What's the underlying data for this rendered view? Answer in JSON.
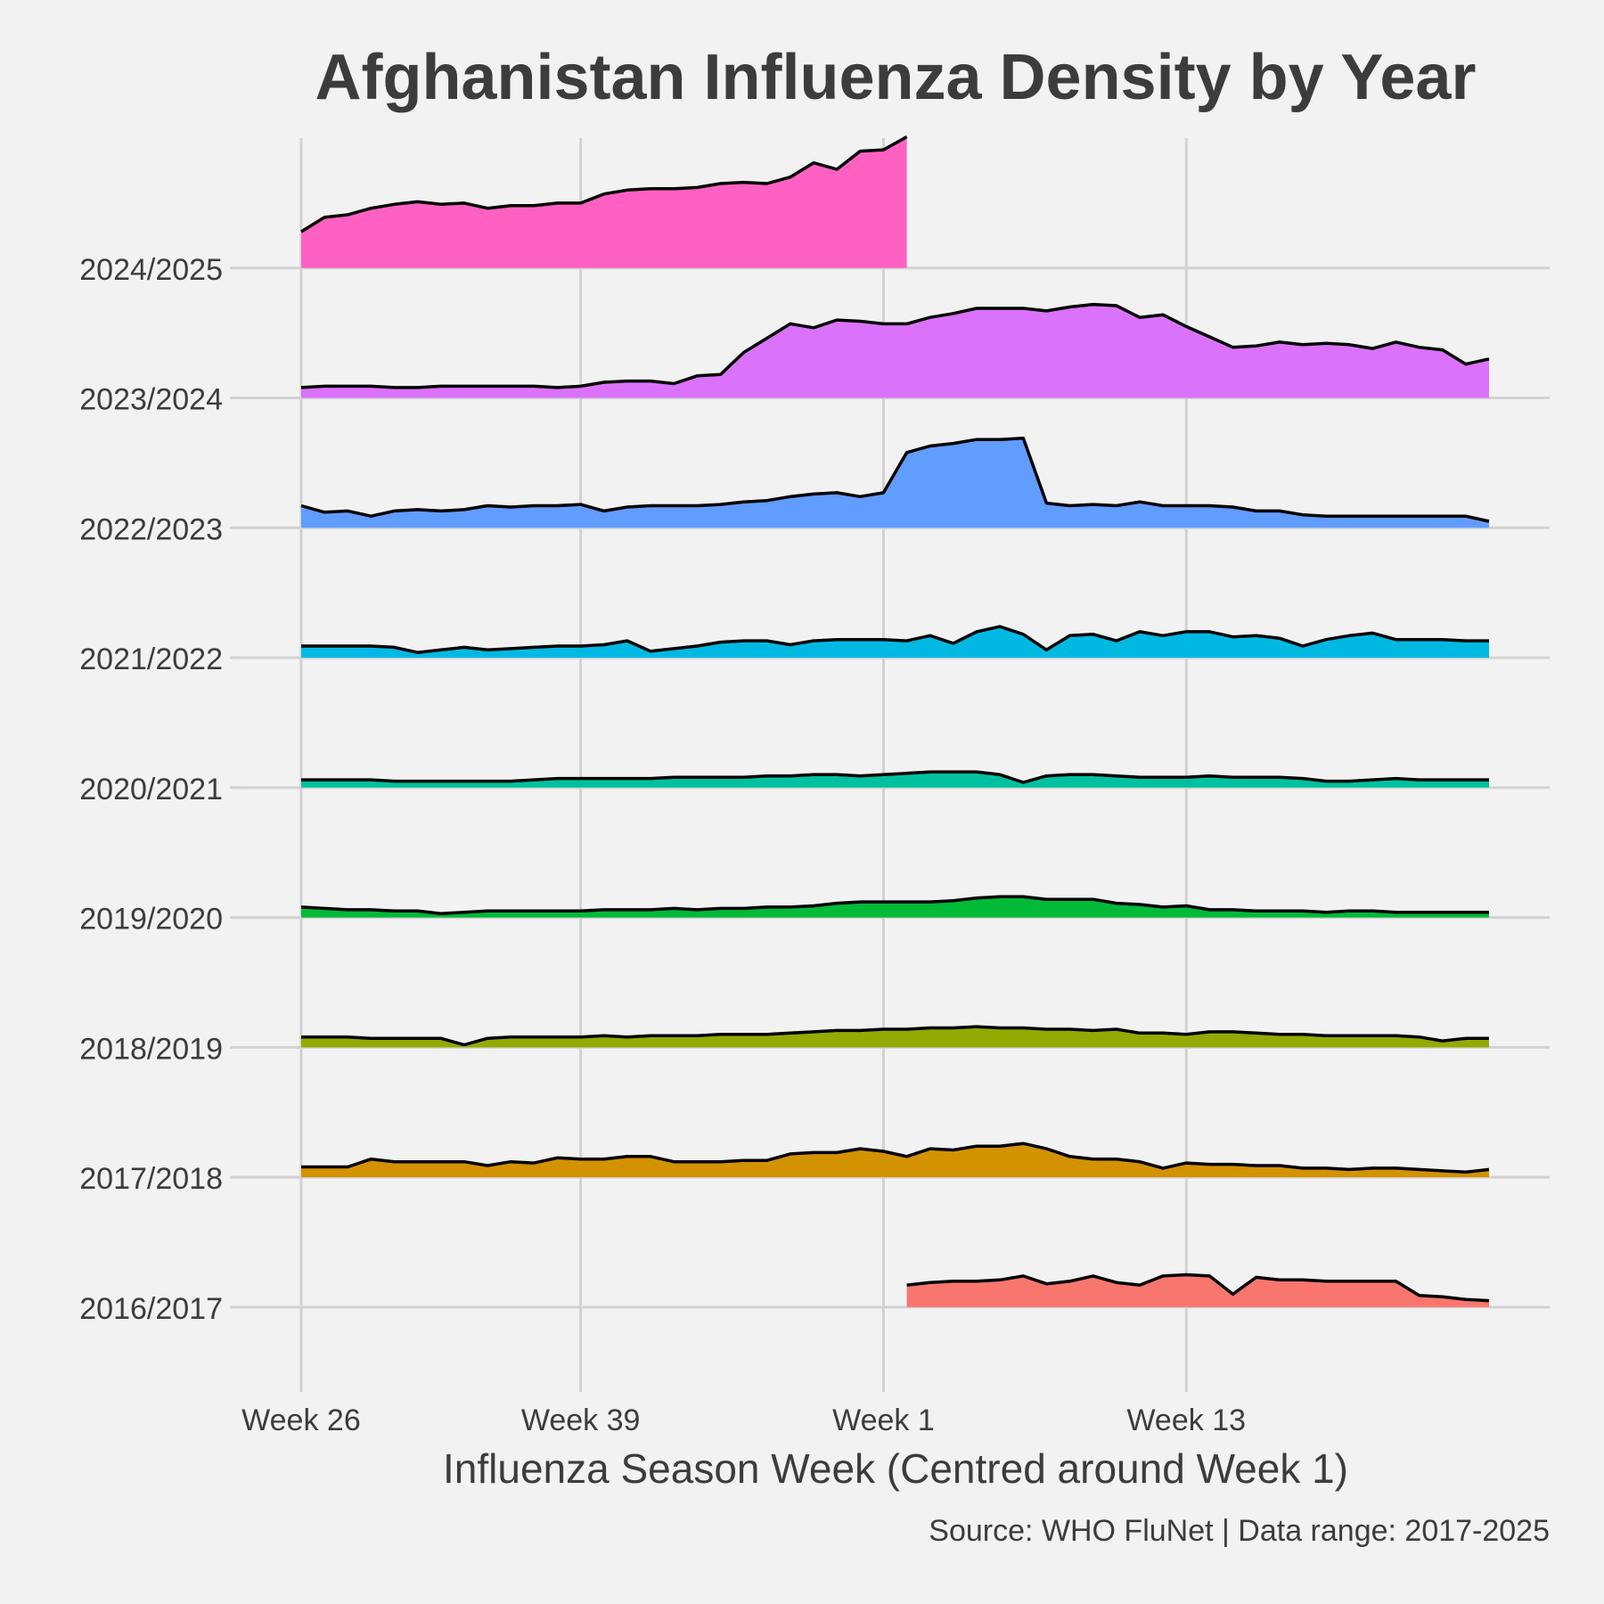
{
  "chart_data": {
    "type": "ridgeline",
    "title": "Afghanistan Influenza Density by Year",
    "x_label": "Influenza Season Week (Centred around Week 1)",
    "caption": "Source: WHO FluNet | Data range: 2017-2025",
    "x": [
      0,
      1,
      2,
      3,
      4,
      5,
      6,
      7,
      8,
      9,
      10,
      11,
      12,
      13,
      14,
      15,
      16,
      17,
      18,
      19,
      20,
      21,
      22,
      23,
      24,
      25,
      26,
      27,
      28,
      29,
      30,
      31,
      32,
      33,
      34,
      35,
      36,
      37,
      38,
      39,
      40,
      41,
      42,
      43,
      44,
      45,
      46,
      47,
      48,
      49,
      50,
      51
    ],
    "xlim": [
      -2.6,
      53.6
    ],
    "xticks": [
      {
        "value": 0,
        "label": "Week 26"
      },
      {
        "value": 12,
        "label": "Week 39"
      },
      {
        "value": 25,
        "label": "Week 1"
      },
      {
        "value": 38,
        "label": "Week 13"
      }
    ],
    "ylim": [
      -0.57,
      9.0
    ],
    "grid": true,
    "series": [
      {
        "name": "2016/2017",
        "color": "#F8766D",
        "values": [
          null,
          null,
          null,
          null,
          null,
          null,
          null,
          null,
          null,
          null,
          null,
          null,
          null,
          null,
          null,
          null,
          null,
          null,
          null,
          null,
          null,
          null,
          null,
          null,
          null,
          null,
          0.17,
          0.19,
          0.2,
          0.2,
          0.21,
          0.24,
          0.18,
          0.2,
          0.24,
          0.19,
          0.17,
          0.24,
          0.25,
          0.24,
          0.1,
          0.23,
          0.21,
          0.21,
          0.2,
          0.2,
          0.2,
          0.2,
          0.09,
          0.08,
          0.06,
          0.05
        ]
      },
      {
        "name": "2017/2018",
        "color": "#D39200",
        "values": [
          0.08,
          0.08,
          0.08,
          0.14,
          0.12,
          0.12,
          0.12,
          0.12,
          0.09,
          0.12,
          0.11,
          0.15,
          0.14,
          0.14,
          0.16,
          0.16,
          0.12,
          0.12,
          0.12,
          0.13,
          0.13,
          0.18,
          0.19,
          0.19,
          0.22,
          0.2,
          0.16,
          0.22,
          0.21,
          0.24,
          0.24,
          0.26,
          0.22,
          0.16,
          0.14,
          0.14,
          0.12,
          0.07,
          0.11,
          0.1,
          0.1,
          0.09,
          0.09,
          0.07,
          0.07,
          0.06,
          0.07,
          0.07,
          0.06,
          0.05,
          0.04,
          0.06
        ]
      },
      {
        "name": "2018/2019",
        "color": "#93AA00",
        "values": [
          0.08,
          0.08,
          0.08,
          0.07,
          0.07,
          0.07,
          0.07,
          0.02,
          0.07,
          0.08,
          0.08,
          0.08,
          0.08,
          0.09,
          0.08,
          0.09,
          0.09,
          0.09,
          0.1,
          0.1,
          0.1,
          0.11,
          0.12,
          0.13,
          0.13,
          0.14,
          0.14,
          0.15,
          0.15,
          0.16,
          0.15,
          0.15,
          0.14,
          0.14,
          0.13,
          0.14,
          0.11,
          0.11,
          0.1,
          0.12,
          0.12,
          0.11,
          0.1,
          0.1,
          0.09,
          0.09,
          0.09,
          0.09,
          0.08,
          0.05,
          0.07,
          0.07
        ]
      },
      {
        "name": "2019/2020",
        "color": "#00BA38",
        "values": [
          0.08,
          0.07,
          0.06,
          0.06,
          0.05,
          0.05,
          0.03,
          0.04,
          0.05,
          0.05,
          0.05,
          0.05,
          0.05,
          0.06,
          0.06,
          0.06,
          0.07,
          0.06,
          0.07,
          0.07,
          0.08,
          0.08,
          0.09,
          0.11,
          0.12,
          0.12,
          0.12,
          0.12,
          0.13,
          0.15,
          0.16,
          0.16,
          0.14,
          0.14,
          0.14,
          0.11,
          0.1,
          0.08,
          0.09,
          0.06,
          0.06,
          0.05,
          0.05,
          0.05,
          0.04,
          0.05,
          0.05,
          0.04,
          0.04,
          0.04,
          0.04,
          0.04
        ]
      },
      {
        "name": "2020/2021",
        "color": "#00C19F",
        "values": [
          0.06,
          0.06,
          0.06,
          0.06,
          0.05,
          0.05,
          0.05,
          0.05,
          0.05,
          0.05,
          0.06,
          0.07,
          0.07,
          0.07,
          0.07,
          0.07,
          0.08,
          0.08,
          0.08,
          0.08,
          0.09,
          0.09,
          0.1,
          0.1,
          0.09,
          0.1,
          0.11,
          0.12,
          0.12,
          0.12,
          0.1,
          0.04,
          0.09,
          0.1,
          0.1,
          0.09,
          0.08,
          0.08,
          0.08,
          0.09,
          0.08,
          0.08,
          0.08,
          0.07,
          0.05,
          0.05,
          0.06,
          0.07,
          0.06,
          0.06,
          0.06,
          0.06
        ]
      },
      {
        "name": "2021/2022",
        "color": "#00B9E3",
        "values": [
          0.09,
          0.09,
          0.09,
          0.09,
          0.08,
          0.04,
          0.06,
          0.08,
          0.06,
          0.07,
          0.08,
          0.09,
          0.09,
          0.1,
          0.13,
          0.05,
          0.07,
          0.09,
          0.12,
          0.13,
          0.13,
          0.1,
          0.13,
          0.14,
          0.14,
          0.14,
          0.13,
          0.17,
          0.11,
          0.2,
          0.24,
          0.18,
          0.06,
          0.17,
          0.18,
          0.13,
          0.2,
          0.17,
          0.2,
          0.2,
          0.16,
          0.17,
          0.15,
          0.09,
          0.14,
          0.17,
          0.19,
          0.14,
          0.14,
          0.14,
          0.13,
          0.13
        ]
      },
      {
        "name": "2022/2023",
        "color": "#619CFF",
        "values": [
          0.17,
          0.12,
          0.13,
          0.09,
          0.13,
          0.14,
          0.13,
          0.14,
          0.17,
          0.16,
          0.17,
          0.17,
          0.18,
          0.13,
          0.16,
          0.17,
          0.17,
          0.17,
          0.18,
          0.2,
          0.21,
          0.24,
          0.26,
          0.27,
          0.24,
          0.27,
          0.58,
          0.63,
          0.65,
          0.68,
          0.68,
          0.69,
          0.19,
          0.17,
          0.18,
          0.17,
          0.2,
          0.17,
          0.17,
          0.17,
          0.16,
          0.13,
          0.13,
          0.1,
          0.09,
          0.09,
          0.09,
          0.09,
          0.09,
          0.09,
          0.09,
          0.05
        ]
      },
      {
        "name": "2023/2024",
        "color": "#DB72FB",
        "values": [
          0.08,
          0.09,
          0.09,
          0.09,
          0.08,
          0.08,
          0.09,
          0.09,
          0.09,
          0.09,
          0.09,
          0.08,
          0.09,
          0.12,
          0.13,
          0.13,
          0.11,
          0.17,
          0.18,
          0.35,
          0.46,
          0.57,
          0.54,
          0.6,
          0.59,
          0.57,
          0.57,
          0.62,
          0.65,
          0.69,
          0.69,
          0.69,
          0.67,
          0.7,
          0.72,
          0.71,
          0.62,
          0.64,
          0.55,
          0.47,
          0.39,
          0.4,
          0.43,
          0.41,
          0.42,
          0.41,
          0.38,
          0.43,
          0.39,
          0.37,
          0.26,
          0.3
        ]
      },
      {
        "name": "2024/2025",
        "color": "#FF61C3",
        "values": [
          0.28,
          0.39,
          0.41,
          0.46,
          0.49,
          0.51,
          0.49,
          0.5,
          0.46,
          0.48,
          0.48,
          0.5,
          0.5,
          0.57,
          0.6,
          0.61,
          0.61,
          0.62,
          0.65,
          0.66,
          0.65,
          0.7,
          0.81,
          0.76,
          0.9,
          0.91,
          1.01,
          null,
          null,
          null,
          null,
          null,
          null,
          null,
          null,
          null,
          null,
          null,
          null,
          null,
          null,
          null,
          null,
          null,
          null,
          null,
          null,
          null,
          null,
          null,
          null,
          null
        ]
      }
    ]
  }
}
